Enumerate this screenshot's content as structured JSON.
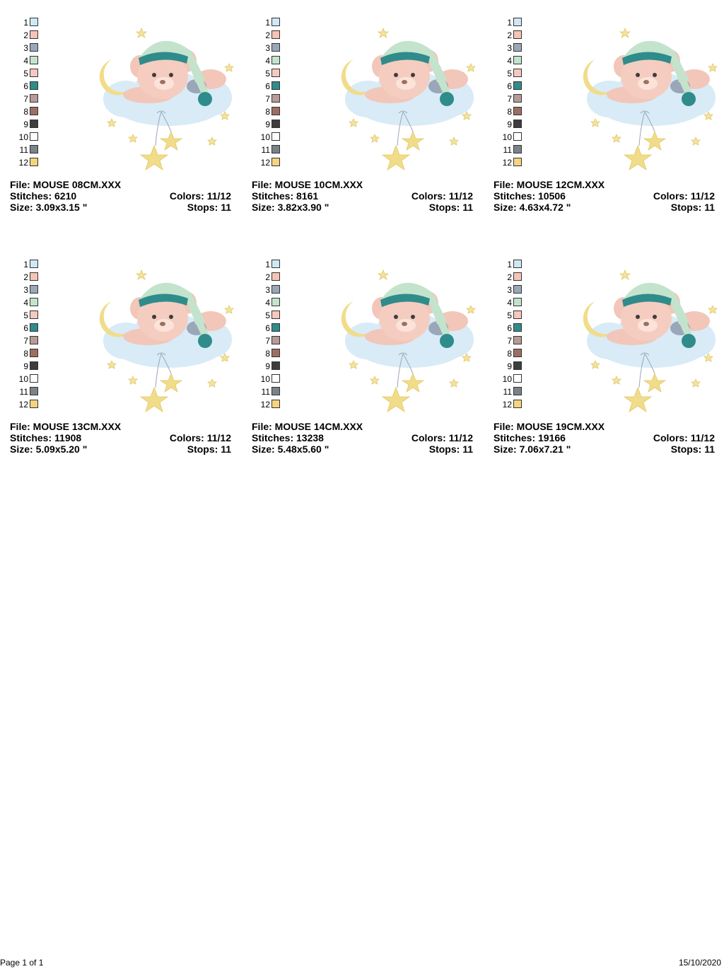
{
  "palette": [
    {
      "num": "1",
      "color": "#cfe8f6"
    },
    {
      "num": "2",
      "color": "#f4c4b6"
    },
    {
      "num": "3",
      "color": "#9aa7b8"
    },
    {
      "num": "4",
      "color": "#c4e3cd"
    },
    {
      "num": "5",
      "color": "#f6c9c0"
    },
    {
      "num": "6",
      "color": "#2f8c8a"
    },
    {
      "num": "7",
      "color": "#b79b99"
    },
    {
      "num": "8",
      "color": "#9c6f62"
    },
    {
      "num": "9",
      "color": "#3d3d3d"
    },
    {
      "num": "10",
      "color": "#ffffff"
    },
    {
      "num": "11",
      "color": "#7b8288"
    },
    {
      "num": "12",
      "color": "#f6d37e"
    }
  ],
  "designs": [
    {
      "file": "File: MOUSE 08CM.XXX",
      "stitches": "Stitches: 6210",
      "colors": "Colors: 11/12",
      "size": "Size: 3.09x3.15 \"",
      "stops": "Stops: 11"
    },
    {
      "file": "File: MOUSE 10CM.XXX",
      "stitches": "Stitches: 8161",
      "colors": "Colors: 11/12",
      "size": "Size: 3.82x3.90 \"",
      "stops": "Stops: 11"
    },
    {
      "file": "File: MOUSE 12CM.XXX",
      "stitches": "Stitches: 10506",
      "colors": "Colors: 11/12",
      "size": "Size: 4.63x4.72 \"",
      "stops": "Stops: 11"
    },
    {
      "file": "File: MOUSE 13CM.XXX",
      "stitches": "Stitches: 11908",
      "colors": "Colors: 11/12",
      "size": "Size: 5.09x5.20 \"",
      "stops": "Stops: 11"
    },
    {
      "file": "File: MOUSE 14CM.XXX",
      "stitches": "Stitches: 13238",
      "colors": "Colors: 11/12",
      "size": "Size: 5.48x5.60 \"",
      "stops": "Stops: 11"
    },
    {
      "file": "File: MOUSE 19CM.XXX",
      "stitches": "Stitches: 19166",
      "colors": "Colors: 11/12",
      "size": "Size: 7.06x7.21 \"",
      "stops": "Stops: 11"
    }
  ],
  "footer": {
    "page": "Page 1 of 1",
    "date": "15/10/2020"
  }
}
